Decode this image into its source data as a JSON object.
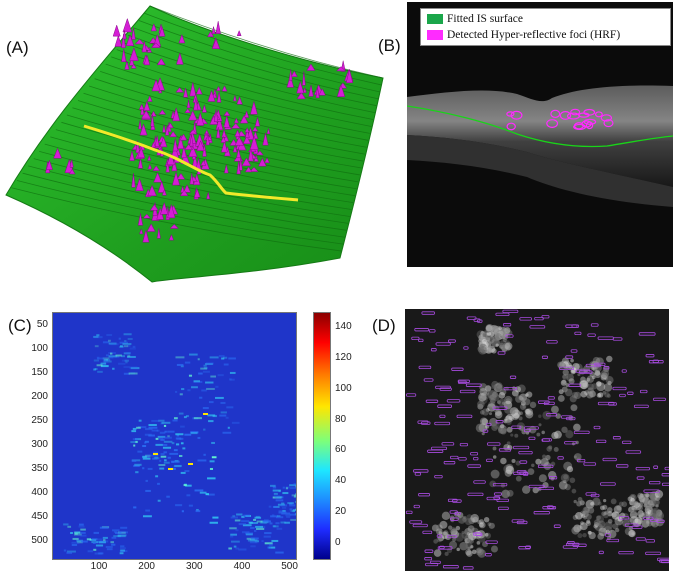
{
  "panels": {
    "A": {
      "label": "(A)"
    },
    "B": {
      "label": "(B)",
      "legend": [
        {
          "label": "Fitted IS surface",
          "color": "#1aa64a"
        },
        {
          "label": "Detected Hyper-reflective foci (HRF)",
          "color": "#ff2bff"
        }
      ]
    },
    "C": {
      "label": "(C)",
      "y_ticks": [
        "50",
        "100",
        "150",
        "200",
        "250",
        "300",
        "350",
        "400",
        "450",
        "500"
      ],
      "x_ticks": [
        "100",
        "200",
        "300",
        "400",
        "500"
      ],
      "colorbar_ticks": [
        "140",
        "120",
        "100",
        "80",
        "60",
        "40",
        "20",
        "0"
      ]
    },
    "D": {
      "label": "(D)"
    }
  },
  "colors": {
    "surface_green": "#22b022",
    "hrf_magenta": "#d41ed4",
    "fitted_line": "#f2e92a",
    "heatmap_background": "#1f35c9",
    "heatmap_bright": "#3df2f0",
    "projection_background": "#191919",
    "projection_outline": "#a84be0"
  },
  "chart_data": {
    "type": "heatmap",
    "title": "",
    "x_ticks": [
      100,
      200,
      300,
      400,
      500
    ],
    "y_ticks": [
      50,
      100,
      150,
      200,
      250,
      300,
      350,
      400,
      450,
      500
    ],
    "colorbar_range": [
      -10,
      150
    ],
    "colorbar_ticks": [
      0,
      20,
      40,
      60,
      80,
      100,
      120,
      140
    ],
    "colormap": "jet"
  }
}
